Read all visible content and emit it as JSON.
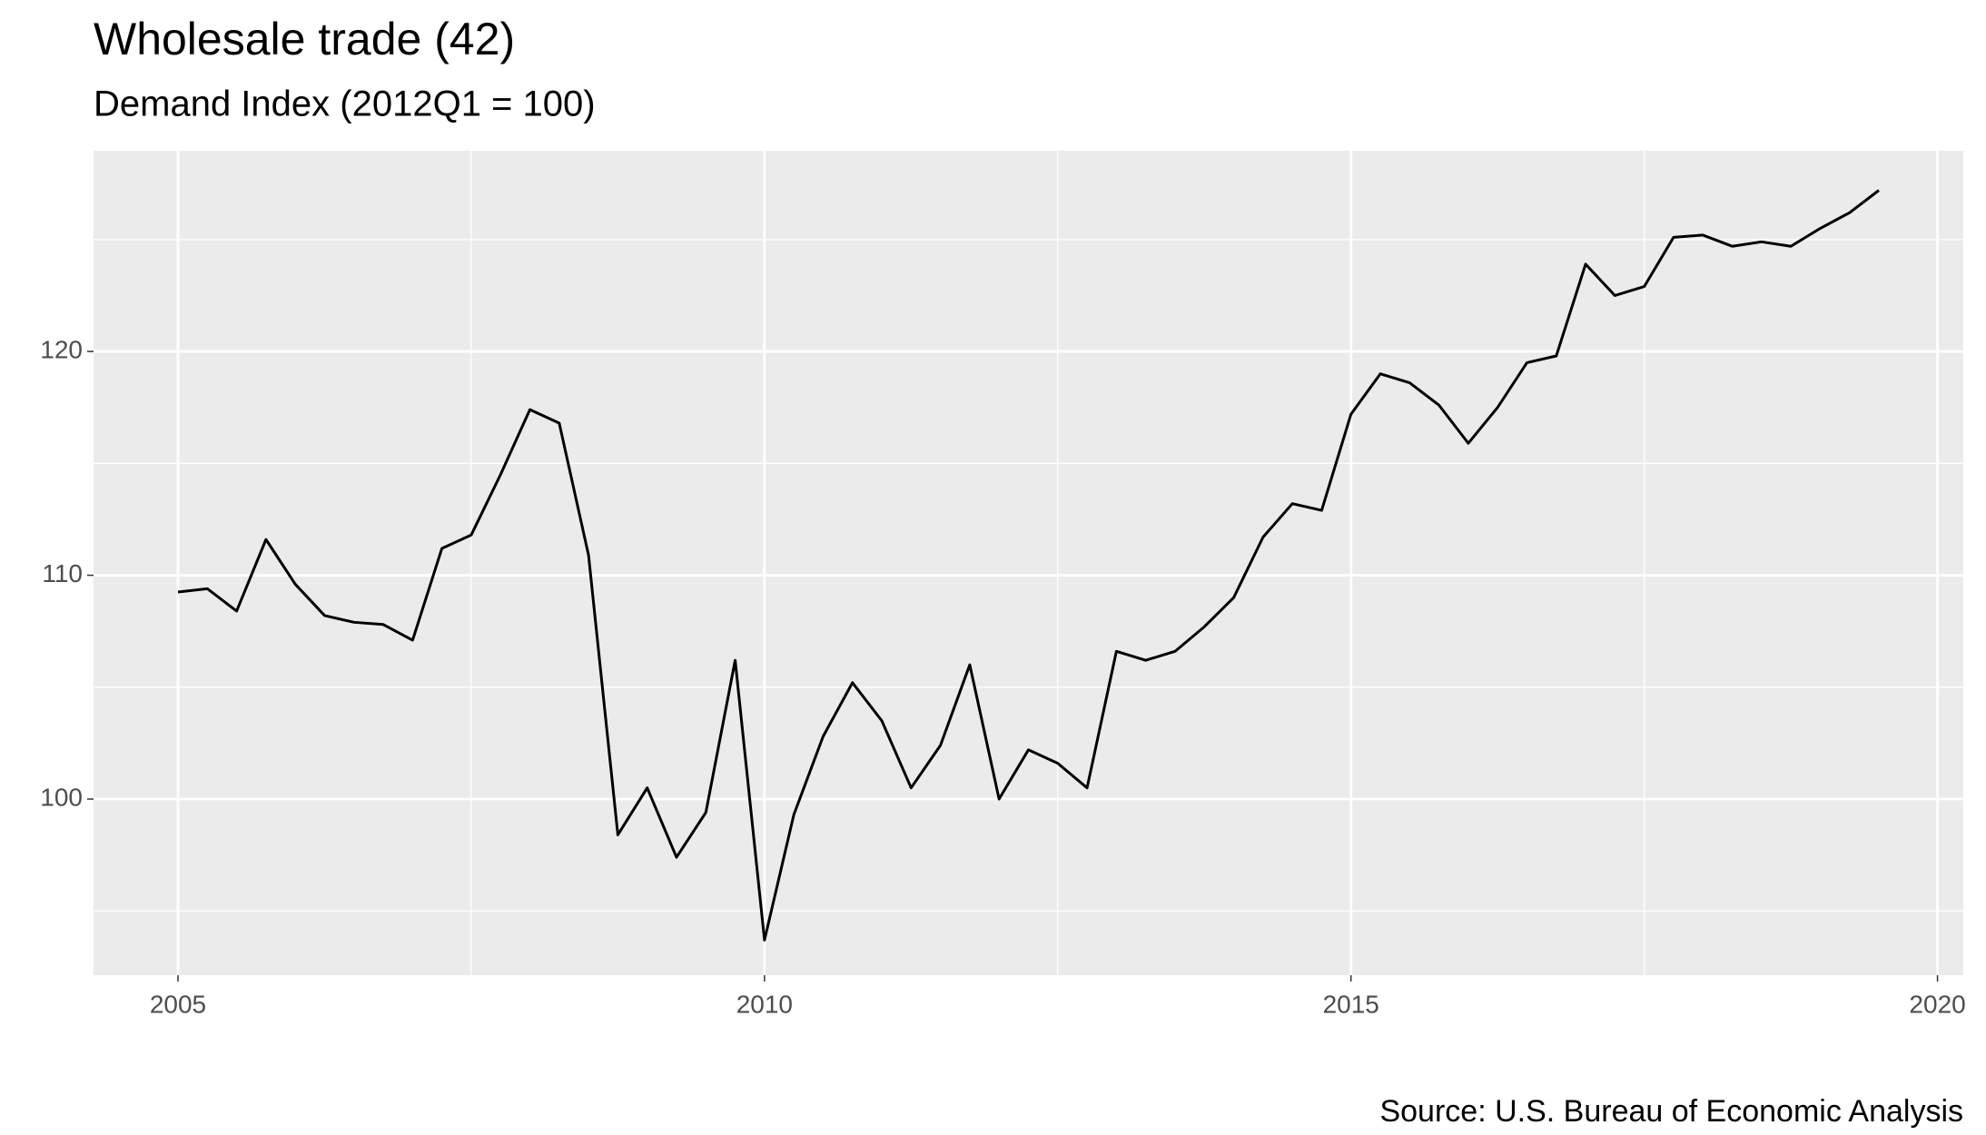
{
  "chart_data": {
    "type": "line",
    "title": "Wholesale trade (42)",
    "subtitle": "Demand Index (2012Q1 = 100)",
    "caption": "Source: U.S. Bureau of Economic Analysis",
    "x": [
      2005,
      2005.25,
      2005.5,
      2005.75,
      2006,
      2006.25,
      2006.5,
      2006.75,
      2007,
      2007.25,
      2007.5,
      2007.75,
      2008,
      2008.25,
      2008.5,
      2008.75,
      2009,
      2009.25,
      2009.5,
      2009.75,
      2010,
      2010.25,
      2010.5,
      2010.75,
      2011,
      2011.25,
      2011.5,
      2011.75,
      2012,
      2012.25,
      2012.5,
      2012.75,
      2013,
      2013.25,
      2013.5,
      2013.75,
      2014,
      2014.25,
      2014.5,
      2014.75,
      2015,
      2015.25,
      2015.5,
      2015.75,
      2016,
      2016.25,
      2016.5,
      2016.75,
      2017,
      2017.25,
      2017.5,
      2017.75,
      2018,
      2018.25,
      2018.5,
      2018.75,
      2019,
      2019.25,
      2019.5
    ],
    "values": [
      109.25,
      109.4,
      108.4,
      111.6,
      109.6,
      108.2,
      107.9,
      107.8,
      107.1,
      111.2,
      111.8,
      114.5,
      117.4,
      116.8,
      110.9,
      98.4,
      100.5,
      97.4,
      99.4,
      106.2,
      93.7,
      99.3,
      102.8,
      105.2,
      103.5,
      100.5,
      102.4,
      106.0,
      100.0,
      102.2,
      101.6,
      100.5,
      106.6,
      106.2,
      106.6,
      107.7,
      109.0,
      111.7,
      113.2,
      112.9,
      117.2,
      119.0,
      118.6,
      117.6,
      115.9,
      117.5,
      119.5,
      119.8,
      123.9,
      122.5,
      122.9,
      125.1,
      125.2,
      124.7,
      124.9,
      124.7,
      125.5,
      126.2,
      127.2
    ],
    "color": "#000000",
    "xlim": [
      2004.28,
      2020.22
    ],
    "xticks": [
      2005,
      2010,
      2015,
      2020
    ],
    "ylim": [
      92.13,
      128.97
    ],
    "yticks": [
      100,
      110,
      120
    ],
    "grid": true,
    "minor_grid": true
  }
}
